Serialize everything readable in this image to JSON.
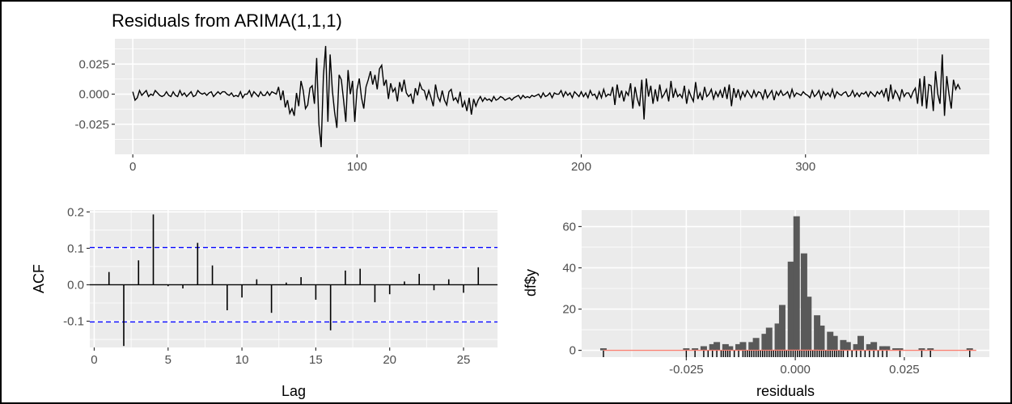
{
  "title": "Residuals from ARIMA(1,1,1)",
  "chart_data": [
    {
      "type": "line",
      "name": "residual-time-series",
      "xlim": [
        -8,
        382
      ],
      "ylim": [
        -0.05,
        0.046
      ],
      "x_ticks": [
        0,
        100,
        200,
        300
      ],
      "x_tick_labels": [
        "0",
        "100",
        "200",
        "300"
      ],
      "y_ticks": [
        -0.025,
        0,
        0.025
      ],
      "y_tick_labels": [
        "-0.025",
        "0.000",
        "0.025"
      ],
      "n": 366,
      "values": [
        0.002,
        -0.005,
        -0.003,
        0.003,
        -0.001,
        0.001,
        0.003,
        -0.002,
        0.0,
        -0.001,
        0.003,
        0.001,
        -0.001,
        -0.002,
        -0.001,
        0.002,
        -0.001,
        -0.002,
        0.002,
        -0.001,
        -0.002,
        0.003,
        -0.001,
        0.001,
        -0.002,
        0.0,
        0.002,
        -0.002,
        -0.001,
        0.003,
        0.001,
        0.0,
        0.001,
        -0.001,
        0.001,
        0.002,
        -0.002,
        0.0,
        0.002,
        0.0,
        0.002,
        0.002,
        0.0,
        -0.001,
        0.001,
        -0.002,
        -0.001,
        -0.002,
        0.002,
        -0.003,
        0.0,
        0.0,
        0.003,
        -0.002,
        0.002,
        0.0,
        -0.002,
        0.002,
        -0.001,
        -0.001,
        0.002,
        -0.001,
        0.002,
        0.001,
        0.0,
        0.006,
        -0.005,
        0.003,
        -0.011,
        -0.005,
        -0.016,
        -0.012,
        -0.018,
        0.001,
        -0.01,
        0.011,
        0.003,
        -0.012,
        -0.009,
        0.005,
        0.007,
        -0.008,
        0.03,
        -0.025,
        -0.044,
        0.015,
        0.04,
        -0.023,
        0.033,
        0.003,
        -0.015,
        -0.028,
        0.016,
        0.012,
        -0.005,
        -0.023,
        0.02,
        0.0,
        0.011,
        -0.023,
        0.004,
        0.013,
        -0.003,
        -0.012,
        0.006,
        0.012,
        0.019,
        0.008,
        0.016,
        0.004,
        0.021,
        0.024,
        0.007,
        0.012,
        -0.004,
        0.009,
        0.002,
        0.005,
        -0.006,
        0.01,
        0.002,
        0.012,
        0.001,
        -0.002,
        0.0,
        -0.008,
        0.005,
        -0.001,
        0.009,
        0.004,
        0.003,
        -0.004,
        0.003,
        -0.003,
        -0.01,
        0.008,
        -0.002,
        -0.006,
        0.003,
        -0.005,
        -0.009,
        0.002,
        0.004,
        -0.005,
        -0.003,
        -0.007,
        0.002,
        -0.011,
        -0.006,
        -0.014,
        -0.003,
        -0.017,
        -0.004,
        -0.01,
        -0.005,
        -0.002,
        -0.006,
        -0.003,
        -0.005,
        -0.004,
        -0.006,
        -0.002,
        -0.005,
        -0.004,
        -0.002,
        -0.003,
        -0.005,
        -0.004,
        -0.003,
        -0.005,
        -0.003,
        -0.002,
        -0.001,
        -0.004,
        -0.001,
        -0.003,
        -0.002,
        -0.003,
        -0.001,
        -0.002,
        -0.001,
        0.0,
        -0.003,
        0.001,
        -0.002,
        -0.001,
        0.001,
        -0.003,
        0.001,
        0.0,
        0.0,
        0.003,
        -0.002,
        0.002,
        -0.001,
        0.001,
        -0.003,
        0.002,
        0.0,
        -0.002,
        0.002,
        -0.002,
        0.001,
        -0.003,
        0.003,
        -0.001,
        0.0,
        -0.004,
        0.002,
        -0.003,
        0.004,
        -0.002,
        0.0,
        -0.001,
        0.006,
        -0.009,
        0.008,
        -0.003,
        0.003,
        -0.006,
        0.002,
        -0.001,
        0.009,
        -0.012,
        0.006,
        -0.004,
        -0.01,
        0.012,
        -0.021,
        0.013,
        -0.002,
        0.007,
        -0.008,
        0.004,
        -0.006,
        0.008,
        -0.003,
        0.0,
        0.004,
        -0.006,
        0.011,
        -0.003,
        0.004,
        -0.002,
        0.0,
        -0.003,
        0.007,
        -0.008,
        0.003,
        -0.002,
        -0.006,
        0.01,
        -0.004,
        0.001,
        -0.005,
        0.006,
        -0.002,
        0.0,
        0.004,
        -0.004,
        0.002,
        -0.002,
        0.003,
        -0.003,
        0.006,
        -0.004,
        0.008,
        -0.01,
        0.005,
        -0.003,
        0.004,
        -0.004,
        0.002,
        -0.002,
        0.003,
        0.0,
        -0.003,
        0.003,
        -0.002,
        0.002,
        0.001,
        -0.004,
        0.004,
        -0.003,
        0.0,
        0.003,
        -0.005,
        0.002,
        -0.001,
        0.003,
        -0.001,
        0.0,
        0.002,
        -0.003,
        0.004,
        -0.002,
        0.001,
        0.0,
        -0.001,
        0.002,
        0.0,
        -0.001,
        -0.003,
        0.003,
        -0.002,
        0.0,
        0.003,
        -0.004,
        0.002,
        -0.001,
        0.001,
        -0.002,
        0.004,
        -0.003,
        0.002,
        0.0,
        -0.001,
        0.001,
        0.002,
        -0.002,
        -0.001,
        0.003,
        -0.002,
        0.001,
        -0.002,
        0.001,
        0.0,
        0.002,
        -0.002,
        0.002,
        0.0,
        -0.002,
        0.002,
        0.0,
        0.003,
        -0.002,
        0.005,
        -0.006,
        0.008,
        -0.004,
        0.003,
        0.0,
        -0.005,
        0.004,
        -0.002,
        0.001,
        0.001,
        -0.003,
        0.002,
        0.005,
        -0.008,
        0.013,
        -0.01,
        0.015,
        -0.012,
        0.008,
        0.007,
        -0.014,
        0.019,
        0.0,
        -0.008,
        0.033,
        -0.018,
        0.015,
        0.0,
        -0.012,
        0.012,
        0.004,
        0.008,
        0.004
      ]
    },
    {
      "type": "bar",
      "name": "acf",
      "xlabel": "Lag",
      "ylabel": "ACF",
      "xlim": [
        -0.3,
        27.3
      ],
      "ylim": [
        -0.172,
        0.205
      ],
      "x_ticks": [
        0,
        5,
        10,
        15,
        20,
        25
      ],
      "x_tick_labels": [
        "0",
        "5",
        "10",
        "15",
        "20",
        "25"
      ],
      "y_ticks": [
        -0.1,
        0.0,
        0.1,
        0.2
      ],
      "y_tick_labels": [
        "-0.1",
        "0.0",
        "0.1",
        "0.2"
      ],
      "confidence_bound": 0.102,
      "confidence_color": "#0000ff",
      "lags": [
        1,
        2,
        3,
        4,
        5,
        6,
        7,
        8,
        9,
        10,
        11,
        12,
        13,
        14,
        15,
        16,
        17,
        18,
        19,
        20,
        21,
        22,
        23,
        24,
        25,
        26
      ],
      "values": [
        0.035,
        -0.168,
        0.067,
        0.193,
        -0.004,
        -0.01,
        0.115,
        0.053,
        -0.07,
        -0.035,
        0.015,
        -0.077,
        0.006,
        0.021,
        -0.041,
        -0.125,
        0.039,
        0.044,
        -0.048,
        -0.026,
        0.009,
        0.03,
        -0.015,
        0.015,
        -0.022,
        0.048
      ]
    },
    {
      "type": "bar",
      "name": "histogram",
      "xlabel": "residuals",
      "ylabel": "df$y",
      "xlim": [
        -0.049,
        0.0445
      ],
      "ylim": [
        -3.3,
        68
      ],
      "x_ticks": [
        -0.025,
        0.0,
        0.025
      ],
      "x_tick_labels": [
        "-0.025",
        "0.000",
        "0.025"
      ],
      "y_ticks": [
        0,
        20,
        40,
        60
      ],
      "y_tick_labels": [
        "0",
        "20",
        "40",
        "60"
      ],
      "bar_color": "#595959",
      "density_color": "#fa8072",
      "density_mean": 0.0,
      "density_sd": 0.0056,
      "density_scale": 0.372,
      "bins": [
        {
          "center": -0.044,
          "count": 1
        },
        {
          "center": -0.025,
          "count": 1
        },
        {
          "center": -0.023,
          "count": 1
        },
        {
          "center": -0.021,
          "count": 2
        },
        {
          "center": -0.019,
          "count": 3
        },
        {
          "center": -0.018,
          "count": 4
        },
        {
          "center": -0.016,
          "count": 3
        },
        {
          "center": -0.015,
          "count": 2
        },
        {
          "center": -0.013,
          "count": 3
        },
        {
          "center": -0.012,
          "count": 4
        },
        {
          "center": -0.01,
          "count": 4
        },
        {
          "center": -0.009,
          "count": 6
        },
        {
          "center": -0.007,
          "count": 8
        },
        {
          "center": -0.006,
          "count": 11
        },
        {
          "center": -0.004,
          "count": 13
        },
        {
          "center": -0.003,
          "count": 22
        },
        {
          "center": -0.001,
          "count": 43
        },
        {
          "center": 0.0003,
          "count": 65
        },
        {
          "center": 0.002,
          "count": 47
        },
        {
          "center": 0.003,
          "count": 26
        },
        {
          "center": 0.005,
          "count": 17
        },
        {
          "center": 0.006,
          "count": 12
        },
        {
          "center": 0.008,
          "count": 9
        },
        {
          "center": 0.009,
          "count": 7
        },
        {
          "center": 0.011,
          "count": 5
        },
        {
          "center": 0.012,
          "count": 4
        },
        {
          "center": 0.014,
          "count": 3
        },
        {
          "center": 0.015,
          "count": 7
        },
        {
          "center": 0.017,
          "count": 3
        },
        {
          "center": 0.018,
          "count": 4
        },
        {
          "center": 0.02,
          "count": 2
        },
        {
          "center": 0.021,
          "count": 2
        },
        {
          "center": 0.023,
          "count": 1
        },
        {
          "center": 0.024,
          "count": 1
        },
        {
          "center": 0.029,
          "count": 1
        },
        {
          "center": 0.031,
          "count": 1
        },
        {
          "center": 0.04,
          "count": 1
        }
      ],
      "rug": [
        -0.044,
        -0.025,
        -0.023,
        -0.021,
        -0.02,
        -0.019,
        -0.018,
        -0.017,
        -0.0165,
        -0.016,
        -0.0155,
        -0.015,
        -0.014,
        -0.013,
        -0.012,
        -0.0115,
        -0.011,
        -0.0105,
        -0.01,
        -0.0095,
        -0.009,
        -0.0085,
        -0.008,
        -0.0075,
        -0.007,
        -0.0065,
        -0.006,
        -0.0055,
        -0.005,
        -0.0045,
        -0.004,
        -0.0035,
        -0.003,
        -0.0025,
        -0.002,
        -0.0015,
        -0.001,
        -0.0005,
        0.0,
        0.0005,
        0.001,
        0.0015,
        0.002,
        0.0025,
        0.003,
        0.0035,
        0.004,
        0.0045,
        0.005,
        0.0055,
        0.006,
        0.0065,
        0.007,
        0.0075,
        0.008,
        0.0085,
        0.009,
        0.0095,
        0.01,
        0.0105,
        0.011,
        0.012,
        0.013,
        0.014,
        0.015,
        0.016,
        0.017,
        0.018,
        0.019,
        0.02,
        0.021,
        0.024,
        0.029,
        0.031,
        0.04
      ]
    }
  ]
}
